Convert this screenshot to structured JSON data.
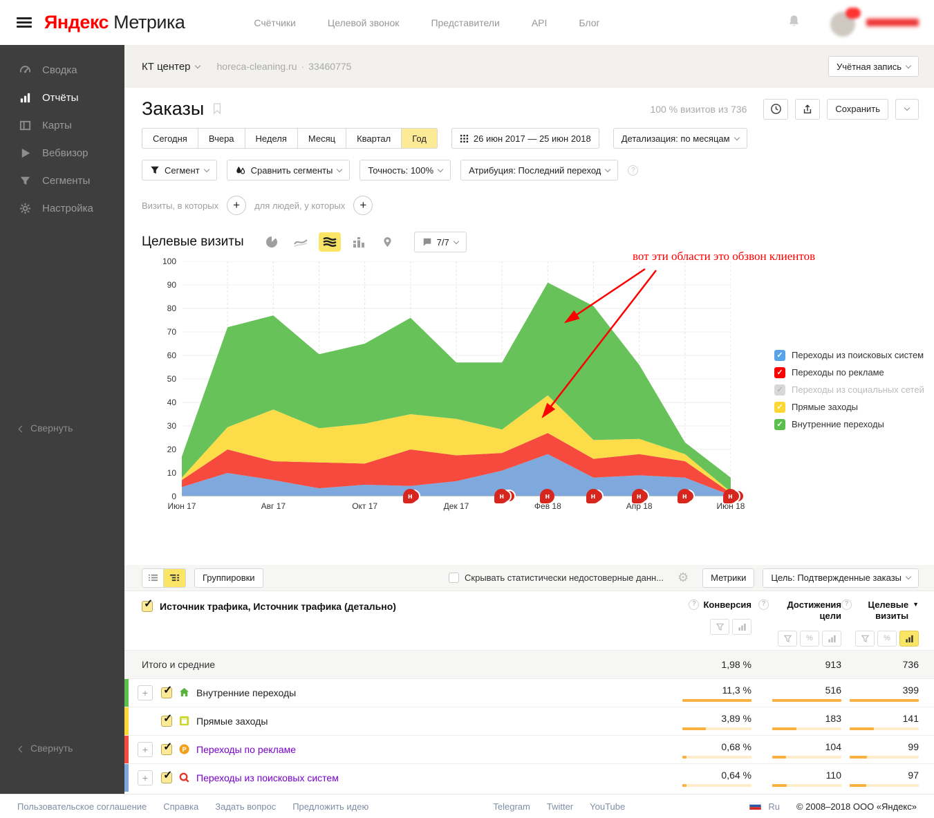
{
  "header": {
    "logo_brand": "Яндекс",
    "logo_product": "Метрика",
    "nav": [
      "Счётчики",
      "Целевой звонок",
      "Представители",
      "API",
      "Блог"
    ]
  },
  "subheader": {
    "counter_name": "КТ центер",
    "counter_site": "horeca-cleaning.ru",
    "counter_id": "33460775",
    "account_button": "Учётная запись"
  },
  "sidebar": {
    "items": [
      {
        "label": "Сводка",
        "icon": "gauge-icon",
        "active": false
      },
      {
        "label": "Отчёты",
        "icon": "reports-icon",
        "active": true
      },
      {
        "label": "Карты",
        "icon": "maps-icon",
        "active": false
      },
      {
        "label": "Вебвизор",
        "icon": "webvisor-icon",
        "active": false
      },
      {
        "label": "Сегменты",
        "icon": "segments-icon",
        "active": false
      },
      {
        "label": "Настройка",
        "icon": "settings-icon",
        "active": false
      }
    ],
    "collapse_label": "Свернуть"
  },
  "report": {
    "title": "Заказы",
    "sampling": "100 % визитов из 736",
    "save_button": "Сохранить",
    "periods": [
      "Сегодня",
      "Вчера",
      "Неделя",
      "Месяц",
      "Квартал",
      "Год"
    ],
    "active_period": "Год",
    "date_range": "26 июн 2017 — 25 июн 2018",
    "detail_button": "Детализация: по месяцам",
    "segment_button": "Сегмент",
    "compare_button": "Сравнить сегменты",
    "accuracy_button": "Точность: 100%",
    "attribution_button": "Атрибуция: Последний переход",
    "visits_in_which": "Визиты, в которых",
    "for_people": "для людей, у которых",
    "chart_title": "Целевые визиты",
    "comments_button": "7/7"
  },
  "annotation": {
    "text": "вот эти области это обзвон клиентов",
    "color": "#ff0000",
    "arrows": [
      {
        "from": [
          706,
          24
        ],
        "to": [
          591,
          101
        ]
      },
      {
        "from": [
          722,
          26
        ],
        "to": [
          558,
          238
        ]
      }
    ]
  },
  "chart_data": {
    "type": "area",
    "stacked": true,
    "title": "Целевые визиты",
    "x": [
      "Июн 17",
      "Июл 17",
      "Авг 17",
      "Сен 17",
      "Окт 17",
      "Ноя 17",
      "Дек 17",
      "Янв 18",
      "Фев 18",
      "Мар 18",
      "Апр 18",
      "Май 18",
      "Июн 18"
    ],
    "x_tick_indices": [
      0,
      2,
      4,
      6,
      8,
      10,
      12
    ],
    "ylim": [
      0,
      100
    ],
    "y_tick_step": 10,
    "grid": true,
    "legend_position": "right",
    "series": [
      {
        "name": "Переходы из поисковых систем",
        "color": "#7fa8dd",
        "values": [
          4,
          10,
          7,
          3.5,
          5,
          4.5,
          6.5,
          11,
          18,
          8,
          9,
          8,
          0.5
        ]
      },
      {
        "name": "Переходы по рекламе",
        "color": "#f54a3d",
        "values": [
          3,
          10,
          8,
          11,
          9,
          15.5,
          11,
          7.5,
          9,
          8,
          9,
          7,
          1
        ]
      },
      {
        "name": "Прямые заходы",
        "color": "#fcdc49",
        "values": [
          1,
          9.5,
          22,
          14.5,
          17,
          15,
          15.5,
          10,
          16,
          8,
          6.5,
          3,
          0.5
        ]
      },
      {
        "name": "Внутренние переходы",
        "color": "#67c25a",
        "values": [
          9,
          42.5,
          40,
          31.5,
          34,
          41,
          24,
          28.5,
          48,
          57,
          31.5,
          5,
          6
        ]
      }
    ],
    "annotation_markers": [
      {
        "x_index": 5,
        "letter": "н",
        "count": 2
      },
      {
        "x_index": 7,
        "letter": "н",
        "count": 3
      },
      {
        "x_index": 8,
        "letter": "н",
        "count": 1
      },
      {
        "x_index": 9,
        "letter": "н",
        "count": 2
      },
      {
        "x_index": 10,
        "letter": "н",
        "count": 2
      },
      {
        "x_index": 11,
        "letter": "н",
        "count": 2
      },
      {
        "x_index": 12,
        "letter": "н",
        "count": 3
      }
    ]
  },
  "legend": [
    {
      "label": "Переходы из поисковых систем",
      "color": "#58a3ea",
      "checked": true,
      "disabled": false
    },
    {
      "label": "Переходы по рекламе",
      "color": "#ff0000",
      "checked": true,
      "disabled": false
    },
    {
      "label": "Переходы из социальных сетей",
      "color": "#d8d8d8",
      "checked": true,
      "disabled": true
    },
    {
      "label": "Прямые заходы",
      "color": "#fdd835",
      "checked": true,
      "disabled": false
    },
    {
      "label": "Внутренние переходы",
      "color": "#5bbf4e",
      "checked": true,
      "disabled": false
    }
  ],
  "table": {
    "toolbar": {
      "groupings_button": "Группировки",
      "hide_unreliable_label": "Скрывать статистически недостоверные данн...",
      "metrics_button": "Метрики",
      "goal_button": "Цель: Подтвержденные заказы"
    },
    "dimension_header": "Источник трафика, Источник трафика (детально)",
    "columns": [
      {
        "label": "Конверсия",
        "sorted": false,
        "tools": [
          "filter",
          "bars"
        ],
        "active_tool": ""
      },
      {
        "label": "Достижения цели",
        "sorted": false,
        "tools": [
          "filter",
          "percent",
          "bars"
        ],
        "active_tool": ""
      },
      {
        "label": "Целевые визиты",
        "sorted": true,
        "tools": [
          "filter",
          "percent",
          "bars"
        ],
        "active_tool": "bars"
      }
    ],
    "totals": {
      "label": "Итого и средние",
      "conversion": "1,98 %",
      "goals": "913",
      "visits": "736"
    },
    "rows": [
      {
        "label": "Внутренние переходы",
        "color": "#5bbf4e",
        "icon": "home-icon",
        "expandable": true,
        "link": false,
        "conversion": "11,3 %",
        "goals": "516",
        "visits": "399",
        "bar_pct": [
          100,
          100,
          100
        ]
      },
      {
        "label": "Прямые заходы",
        "color": "#fdd835",
        "icon": "window-icon",
        "expandable": false,
        "link": false,
        "conversion": "3,89 %",
        "goals": "183",
        "visits": "141",
        "bar_pct": [
          34,
          35,
          35
        ]
      },
      {
        "label": "Переходы по рекламе",
        "color": "#f54a3d",
        "icon": "coin-icon",
        "expandable": true,
        "link": true,
        "conversion": "0,68 %",
        "goals": "104",
        "visits": "99",
        "bar_pct": [
          6,
          20,
          25
        ]
      },
      {
        "label": "Переходы из поисковых систем",
        "color": "#7fa8dd",
        "icon": "search-icon",
        "expandable": true,
        "link": true,
        "conversion": "0,64 %",
        "goals": "110",
        "visits": "97",
        "bar_pct": [
          6,
          21,
          24
        ]
      }
    ]
  },
  "footer": {
    "links": [
      "Пользовательское соглашение",
      "Справка",
      "Задать вопрос",
      "Предложить идею"
    ],
    "social": [
      "Telegram",
      "Twitter",
      "YouTube"
    ],
    "lang": "Ru",
    "copyright": "© 2008–2018 ООО «Яндекс»"
  }
}
